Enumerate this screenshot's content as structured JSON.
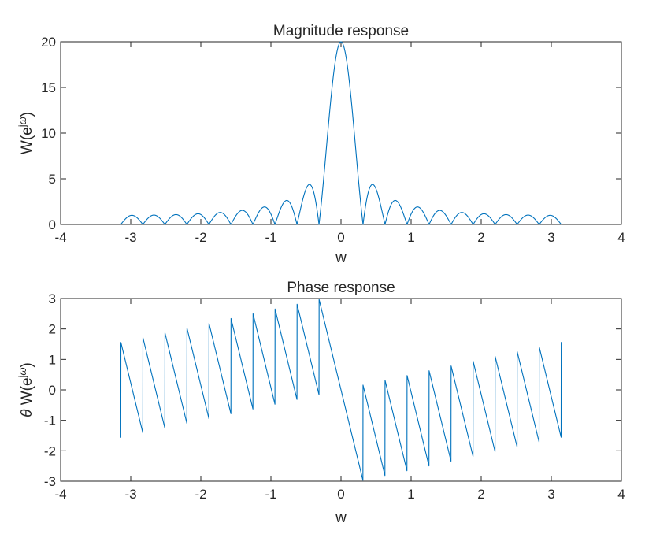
{
  "chart_data": [
    {
      "type": "line",
      "title": "Magnitude response",
      "xlabel": "w",
      "ylabel_parts": [
        "W(e",
        "j",
        "ω",
        ")"
      ],
      "xlim": [
        -4,
        4
      ],
      "ylim": [
        0,
        20
      ],
      "xticks": [
        -4,
        -3,
        -2,
        -1,
        0,
        1,
        2,
        3,
        4
      ],
      "xtick_labels": [
        "-4",
        "-3",
        "-2",
        "-1",
        "0",
        "1",
        "2",
        "3",
        "4"
      ],
      "yticks": [
        0,
        5,
        10,
        15,
        20
      ],
      "ytick_labels": [
        "0",
        "5",
        "10",
        "15",
        "20"
      ],
      "grid": false,
      "line_color": "#0072BD",
      "series": [
        {
          "function": "abs(sin(10*w)/sin(w/2))",
          "x_range": [
            -3.1416,
            3.1416
          ]
        }
      ]
    },
    {
      "type": "line",
      "title": "Phase response",
      "xlabel": "w",
      "ylabel_parts": [
        "θ",
        " W(e",
        "j",
        "ω",
        ")"
      ],
      "xlim": [
        -4,
        4
      ],
      "ylim": [
        -3,
        3
      ],
      "xticks": [
        -4,
        -3,
        -2,
        -1,
        0,
        1,
        2,
        3,
        4
      ],
      "xtick_labels": [
        "-4",
        "-3",
        "-2",
        "-1",
        "0",
        "1",
        "2",
        "3",
        "4"
      ],
      "yticks": [
        -3,
        -2,
        -1,
        0,
        1,
        2,
        3
      ],
      "ytick_labels": [
        "-3",
        "-2",
        "-1",
        "0",
        "1",
        "2",
        "3"
      ],
      "grid": false,
      "line_color": "#0072BD",
      "series": [
        {
          "function": "angle(exp(-j*9.5*w) * sin(10*w)/sin(w/2))",
          "x_range": [
            -3.1416,
            3.1416
          ]
        }
      ]
    }
  ]
}
